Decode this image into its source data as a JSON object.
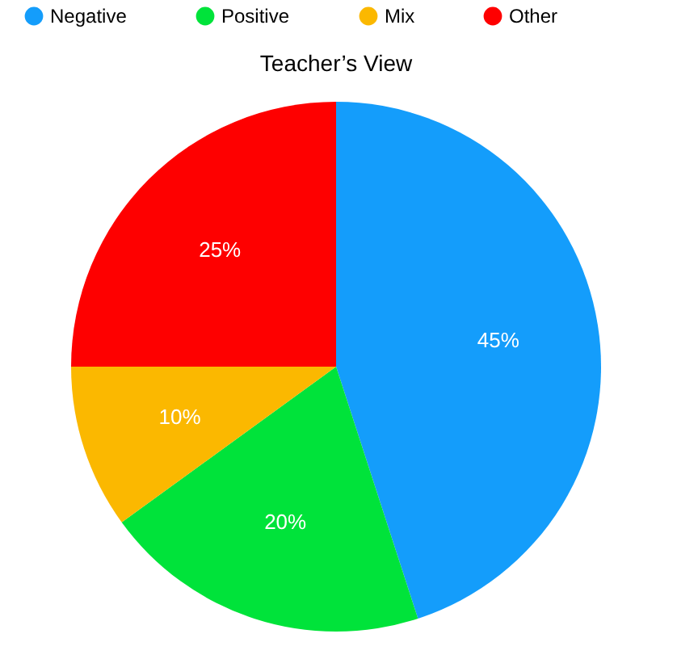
{
  "chart_data": {
    "type": "pie",
    "title": "Teacher’s View",
    "categories": [
      "Negative",
      "Positive",
      "Mix",
      "Other"
    ],
    "values": [
      45,
      20,
      10,
      25
    ],
    "colors": [
      "#149dfb",
      "#00e33a",
      "#fbb800",
      "#fe0000"
    ],
    "value_labels": [
      "45%",
      "20%",
      "10%",
      "25%"
    ],
    "legend": "top"
  }
}
